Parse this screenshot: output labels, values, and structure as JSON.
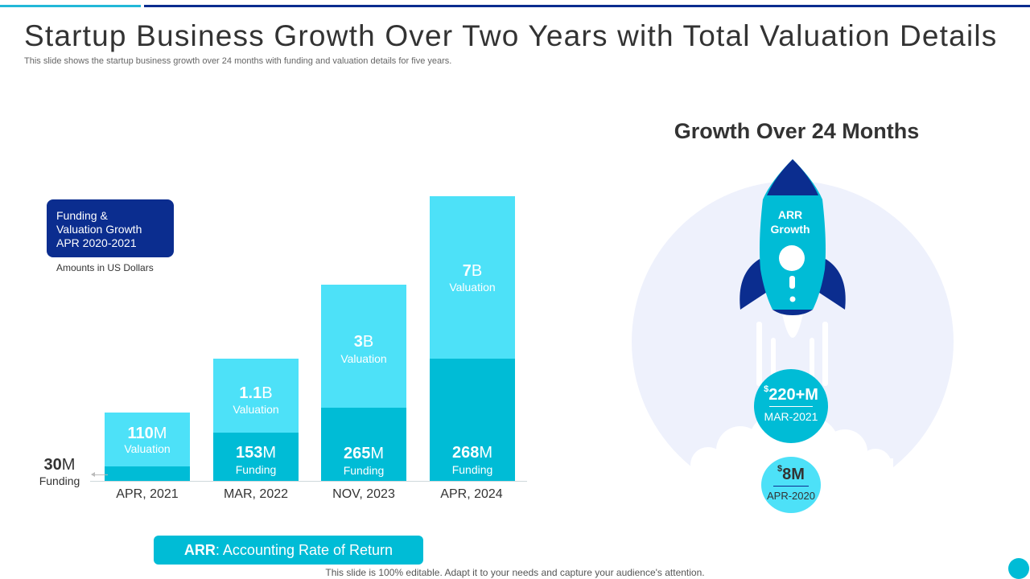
{
  "title": "Startup Business Growth Over Two Years with Total Valuation Details",
  "subtitle": "This slide shows the startup business growth over 24 months with funding and valuation details for five years.",
  "legend": {
    "line1": "Funding &",
    "line2": "Valuation Growth",
    "line3": "APR 2020-2021",
    "note": "Amounts in US Dollars"
  },
  "chart_data": {
    "type": "bar",
    "stacked": true,
    "categories": [
      "APR, 2021",
      "MAR, 2022",
      "NOV, 2023",
      "APR, 2024"
    ],
    "series": [
      {
        "name": "Funding",
        "labels": [
          "30M",
          "153M",
          "265M",
          "268M"
        ]
      },
      {
        "name": "Valuation",
        "labels": [
          "110M",
          "1.1B",
          "3B",
          "7B"
        ]
      }
    ],
    "bars": [
      {
        "category": "APR, 2021",
        "funding_num": "30",
        "funding_unit": "M",
        "funding_label": "Funding",
        "valuation_num": "110",
        "valuation_unit": "M",
        "valuation_label": "Valuation"
      },
      {
        "category": "MAR, 2022",
        "funding_num": "153",
        "funding_unit": "M",
        "funding_label": "Funding",
        "valuation_num": "1.1",
        "valuation_unit": "B",
        "valuation_label": "Valuation"
      },
      {
        "category": "NOV, 2023",
        "funding_num": "265",
        "funding_unit": "M",
        "funding_label": "Funding",
        "valuation_num": "3",
        "valuation_unit": "B",
        "valuation_label": "Valuation"
      },
      {
        "category": "APR, 2024",
        "funding_num": "268",
        "funding_unit": "M",
        "funding_label": "Funding",
        "valuation_num": "7",
        "valuation_unit": "B",
        "valuation_label": "Valuation"
      }
    ],
    "title": "",
    "xlabel": "",
    "ylabel": ""
  },
  "arr_note": {
    "abbr": "ARR",
    "text": ": Accounting Rate of Return"
  },
  "growth": {
    "title": "Growth Over 24 Months",
    "rocket_label_1": "ARR",
    "rocket_label_2": "Growth",
    "current": {
      "currency": "$",
      "value": "220+M",
      "date": "MAR-2021"
    },
    "previous": {
      "currency": "$",
      "value": "8M",
      "date": "APR-2020"
    }
  },
  "footer": "This slide is 100% editable. Adapt it to your needs and capture your audience's attention.",
  "colors": {
    "dark_blue": "#0b2d8f",
    "teal": "#00bcd6",
    "light_cyan": "#4de1f8",
    "pale_bg": "#eef1fc"
  }
}
